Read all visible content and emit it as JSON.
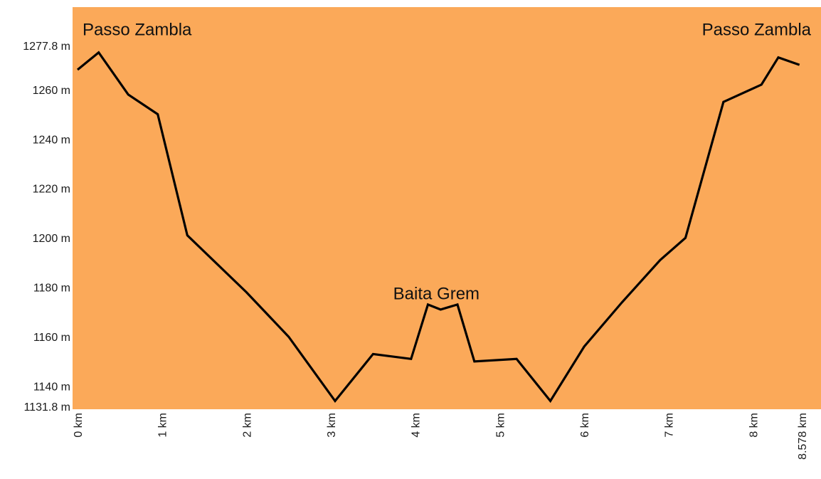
{
  "colors": {
    "plot_background": "#FBA959",
    "line": "#000000",
    "text": "#1a1a1a"
  },
  "chart_data": {
    "type": "line",
    "title": "",
    "xlabel": "",
    "ylabel": "",
    "grid": false,
    "xlim": [
      0,
      8.578
    ],
    "ylim": [
      1131.8,
      1277.8
    ],
    "x_ticks": [
      0,
      1,
      2,
      3,
      4,
      5,
      6,
      7,
      8,
      8.578
    ],
    "x_tick_labels": [
      "0 km",
      "1 km",
      "2 km",
      "3 km",
      "4 km",
      "5 km",
      "6 km",
      "7 km",
      "8 km",
      "8.578 km"
    ],
    "y_ticks": [
      1131.8,
      1140,
      1160,
      1180,
      1200,
      1220,
      1240,
      1260,
      1277.8
    ],
    "y_tick_labels": [
      "1131.8 m",
      "1140 m",
      "1160 m",
      "1180 m",
      "1200 m",
      "1220 m",
      "1240 m",
      "1260 m",
      "1277.8 m"
    ],
    "series": [
      {
        "x": [
          0,
          0.25,
          0.6,
          0.95,
          1.3,
          2.0,
          2.5,
          3.05,
          3.5,
          3.95,
          4.15,
          4.3,
          4.5,
          4.7,
          5.2,
          5.6,
          6.0,
          6.45,
          6.9,
          7.2,
          7.65,
          8.1,
          8.3,
          8.55
        ],
        "y": [
          1268,
          1275,
          1258,
          1250,
          1201,
          1178,
          1160,
          1134,
          1153,
          1151,
          1173,
          1171,
          1173,
          1150,
          1151,
          1134,
          1156,
          1174,
          1191,
          1200,
          1255,
          1262,
          1273,
          1270
        ]
      }
    ],
    "annotations": [
      {
        "text": "Passo Zambla",
        "x": 0,
        "y": 1282
      },
      {
        "text": "Baita Grem",
        "x": 4.25,
        "y": 1180
      },
      {
        "text": "Passo Zambla",
        "x": 8.578,
        "y": 1282
      }
    ]
  }
}
